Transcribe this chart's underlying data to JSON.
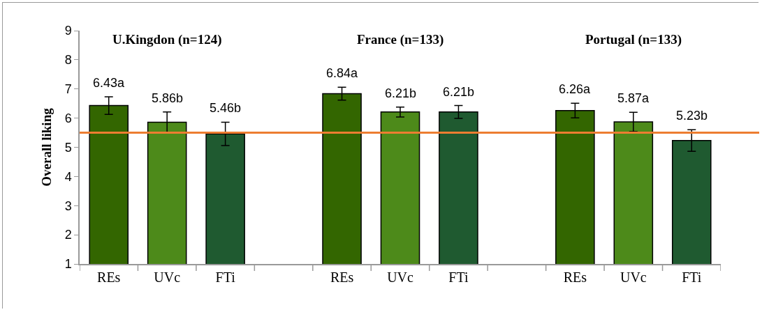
{
  "chart_data": {
    "type": "bar",
    "ylabel": "Overall liking",
    "categories": [
      "REs",
      "UVc",
      "FTi",
      null,
      "REs",
      "UVc",
      "FTi",
      null,
      "REs",
      "UVc",
      "FTi"
    ],
    "values": [
      6.43,
      5.86,
      5.46,
      null,
      6.84,
      6.21,
      6.21,
      null,
      6.26,
      5.87,
      5.23
    ],
    "colors": [
      "#336600",
      "#4d8a1a",
      "#1f5a30",
      null,
      "#336600",
      "#4d8a1a",
      "#1f5a30",
      null,
      "#336600",
      "#4d8a1a",
      "#1f5a30"
    ],
    "errors": [
      0.3,
      0.35,
      0.4,
      null,
      0.22,
      0.17,
      0.22,
      null,
      0.25,
      0.33,
      0.37
    ],
    "value_labels": [
      "6.43a",
      "5.86b",
      "5.46b",
      null,
      "6.84a",
      "6.21b",
      "6.21b",
      null,
      "6.26a",
      "5.87a",
      "5.23b"
    ],
    "annotations": [
      "U.Kingdon (n=124)",
      "France (n=133)",
      "Portugal (n=133)"
    ],
    "ref_lines": [
      {
        "axis": "y",
        "value": 5.5,
        "color": "#ed7d31"
      }
    ],
    "ylim": [
      1,
      9
    ],
    "yticks": [
      1,
      2,
      3,
      4,
      5,
      6,
      7,
      8,
      9
    ],
    "grid": false
  }
}
